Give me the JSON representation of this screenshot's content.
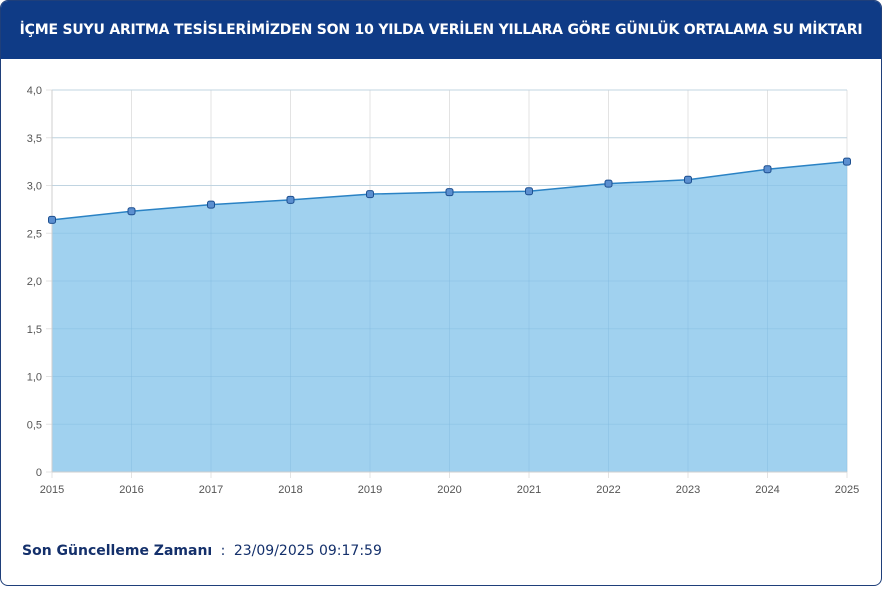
{
  "header": {
    "title": "İÇME SUYU ARITMA TESİSLERİMİZDEN SON 10 YILDA VERİLEN YILLARA GÖRE GÜNLÜK ORTALAMA SU MİKTARI"
  },
  "footer": {
    "label": "Son Güncelleme Zamanı",
    "separator": ":",
    "timestamp": "23/09/2025 09:17:59"
  },
  "colors": {
    "header_bg": "#0f3b86",
    "area_fill": "#9bcfee",
    "line": "#2a82c4",
    "point": "#5b8fd0"
  },
  "chart_data": {
    "type": "area",
    "x": [
      "2015",
      "2016",
      "2017",
      "2018",
      "2019",
      "2020",
      "2021",
      "2022",
      "2023",
      "2024",
      "2025"
    ],
    "series": [
      {
        "values": [
          2.64,
          2.73,
          2.8,
          2.85,
          2.91,
          2.93,
          2.94,
          3.02,
          3.06,
          3.17,
          3.25
        ]
      }
    ],
    "y_ticks": [
      "0",
      "0,5",
      "1,0",
      "1,5",
      "2,0",
      "2,5",
      "3,0",
      "3,5",
      "4,0"
    ],
    "ylim": [
      0,
      4
    ],
    "grid": true,
    "legend": "none"
  }
}
